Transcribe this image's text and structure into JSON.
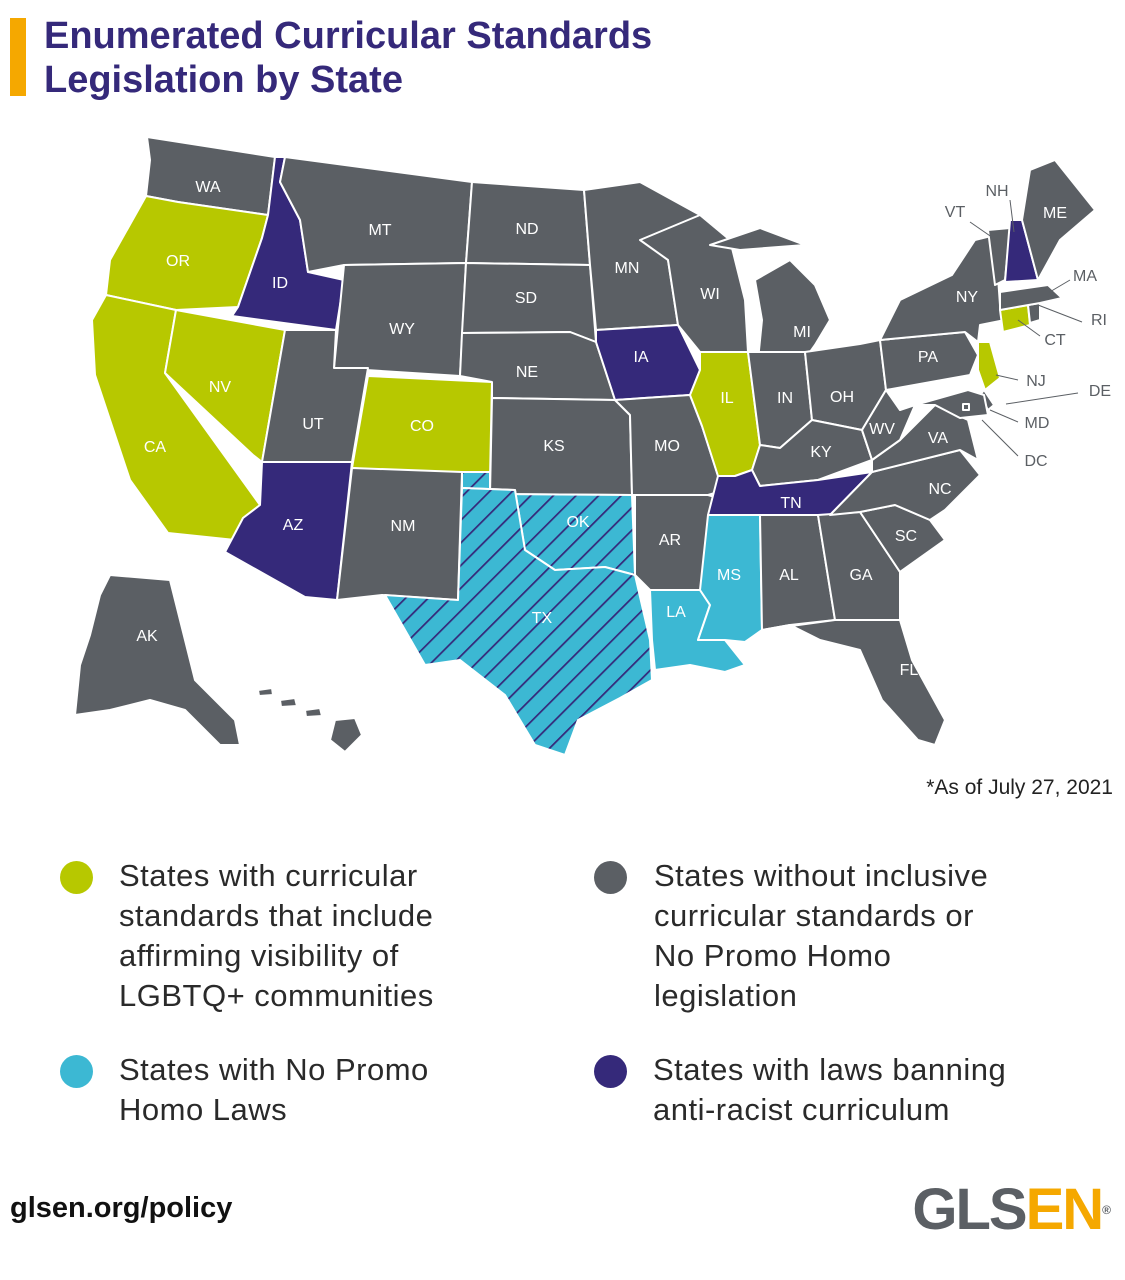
{
  "title_line1": "Enumerated Curricular Standards",
  "title_line2": "Legislation by State",
  "colors": {
    "affirming": "#b7c800",
    "no_promo_homo": "#3cb8d3",
    "none": "#5b5f64",
    "anti_racist_ban": "#35297a",
    "title": "#35297a",
    "accent": "#f5a800"
  },
  "map": {
    "states": [
      {
        "code": "WA",
        "category": "none"
      },
      {
        "code": "OR",
        "category": "affirming"
      },
      {
        "code": "CA",
        "category": "affirming"
      },
      {
        "code": "NV",
        "category": "affirming"
      },
      {
        "code": "ID",
        "category": "anti_racist_ban"
      },
      {
        "code": "MT",
        "category": "none"
      },
      {
        "code": "WY",
        "category": "none"
      },
      {
        "code": "UT",
        "category": "none"
      },
      {
        "code": "CO",
        "category": "affirming"
      },
      {
        "code": "AZ",
        "category": "anti_racist_ban"
      },
      {
        "code": "NM",
        "category": "none"
      },
      {
        "code": "ND",
        "category": "none"
      },
      {
        "code": "SD",
        "category": "none"
      },
      {
        "code": "NE",
        "category": "none"
      },
      {
        "code": "KS",
        "category": "none"
      },
      {
        "code": "OK",
        "category": "no_promo_homo",
        "hatched": true
      },
      {
        "code": "TX",
        "category": "no_promo_homo",
        "hatched": true
      },
      {
        "code": "MN",
        "category": "none"
      },
      {
        "code": "IA",
        "category": "anti_racist_ban"
      },
      {
        "code": "MO",
        "category": "none"
      },
      {
        "code": "AR",
        "category": "none"
      },
      {
        "code": "LA",
        "category": "no_promo_homo"
      },
      {
        "code": "WI",
        "category": "none"
      },
      {
        "code": "IL",
        "category": "affirming"
      },
      {
        "code": "MI",
        "category": "none"
      },
      {
        "code": "IN",
        "category": "none"
      },
      {
        "code": "OH",
        "category": "none"
      },
      {
        "code": "KY",
        "category": "none"
      },
      {
        "code": "TN",
        "category": "anti_racist_ban"
      },
      {
        "code": "MS",
        "category": "no_promo_homo"
      },
      {
        "code": "AL",
        "category": "none"
      },
      {
        "code": "GA",
        "category": "none"
      },
      {
        "code": "FL",
        "category": "none"
      },
      {
        "code": "SC",
        "category": "none"
      },
      {
        "code": "NC",
        "category": "none"
      },
      {
        "code": "VA",
        "category": "none"
      },
      {
        "code": "WV",
        "category": "none"
      },
      {
        "code": "PA",
        "category": "none"
      },
      {
        "code": "NY",
        "category": "none"
      },
      {
        "code": "NJ",
        "category": "affirming"
      },
      {
        "code": "DE",
        "category": "none"
      },
      {
        "code": "MD",
        "category": "none"
      },
      {
        "code": "DC",
        "category": "none"
      },
      {
        "code": "CT",
        "category": "affirming"
      },
      {
        "code": "RI",
        "category": "none"
      },
      {
        "code": "MA",
        "category": "none"
      },
      {
        "code": "VT",
        "category": "none"
      },
      {
        "code": "NH",
        "category": "anti_racist_ban"
      },
      {
        "code": "ME",
        "category": "none"
      },
      {
        "code": "AK",
        "category": "none"
      },
      {
        "code": "HI",
        "category": "none"
      }
    ]
  },
  "date_note": "*As of July 27, 2021",
  "legend": [
    {
      "category": "affirming",
      "lines": [
        "States with curricular",
        "standards that include",
        "affirming visibility of",
        "LGBTQ+ communities"
      ]
    },
    {
      "category": "none",
      "lines": [
        "States without inclusive",
        "curricular standards or",
        "No Promo Homo",
        "legislation"
      ]
    },
    {
      "category": "no_promo_homo",
      "lines": [
        "States with No Promo",
        "Homo Laws"
      ]
    },
    {
      "category": "anti_racist_ban",
      "lines": [
        "States with laws banning",
        "anti-racist curriculum"
      ]
    }
  ],
  "footer_url": "glsen.org/policy",
  "logo": {
    "part1": "GLS",
    "part2": "EN",
    "reg": "®"
  }
}
